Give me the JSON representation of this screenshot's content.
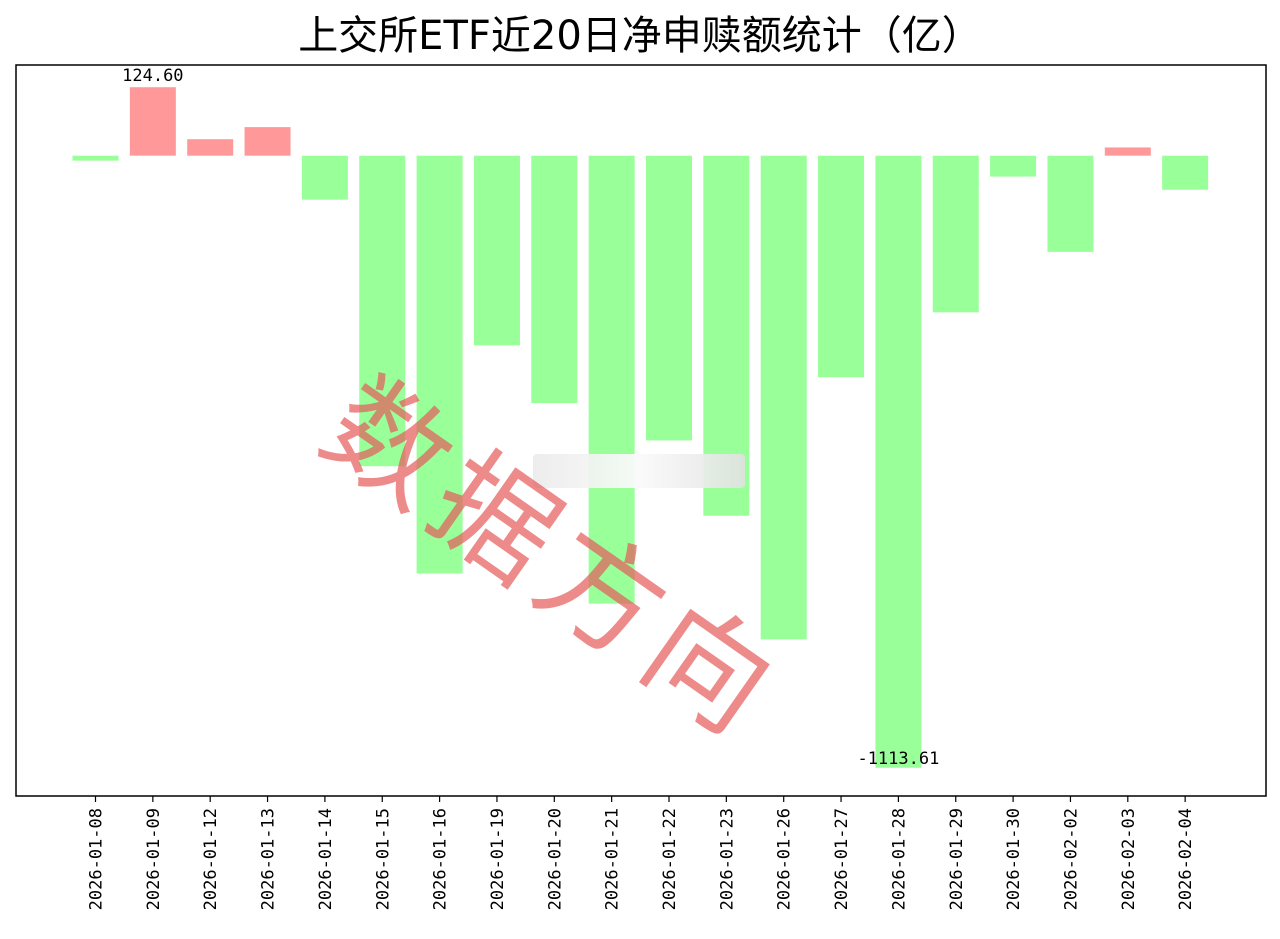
{
  "chart_data": {
    "type": "bar",
    "title": "上交所ETF近20日净申赎额统计（亿）",
    "categories": [
      "2026-01-08",
      "2026-01-09",
      "2026-01-12",
      "2026-01-13",
      "2026-01-14",
      "2026-01-15",
      "2026-01-16",
      "2026-01-19",
      "2026-01-20",
      "2026-01-21",
      "2026-01-22",
      "2026-01-23",
      "2026-01-26",
      "2026-01-27",
      "2026-01-28",
      "2026-01-29",
      "2026-01-30",
      "2026-02-02",
      "2026-02-03",
      "2026-02-04"
    ],
    "values": [
      -9,
      124.6,
      30,
      52,
      -80,
      -565,
      -760,
      -345,
      -450,
      -815,
      -518,
      -655,
      -880,
      -403,
      -1113.61,
      -285,
      -38,
      -175,
      15,
      -62
    ],
    "data_labels": [
      {
        "index": 1,
        "text": "124.60"
      },
      {
        "index": 14,
        "text": "-1113.61"
      }
    ],
    "ylim": [
      -1165,
      165
    ],
    "xlabel": "",
    "ylabel": "",
    "grid": false,
    "legend": "none",
    "colors": {
      "positive": "#ff9999",
      "negative": "#99ff99",
      "axis": "#000000"
    }
  },
  "watermark": {
    "text": "数据方向",
    "color": "#e65a5a"
  }
}
